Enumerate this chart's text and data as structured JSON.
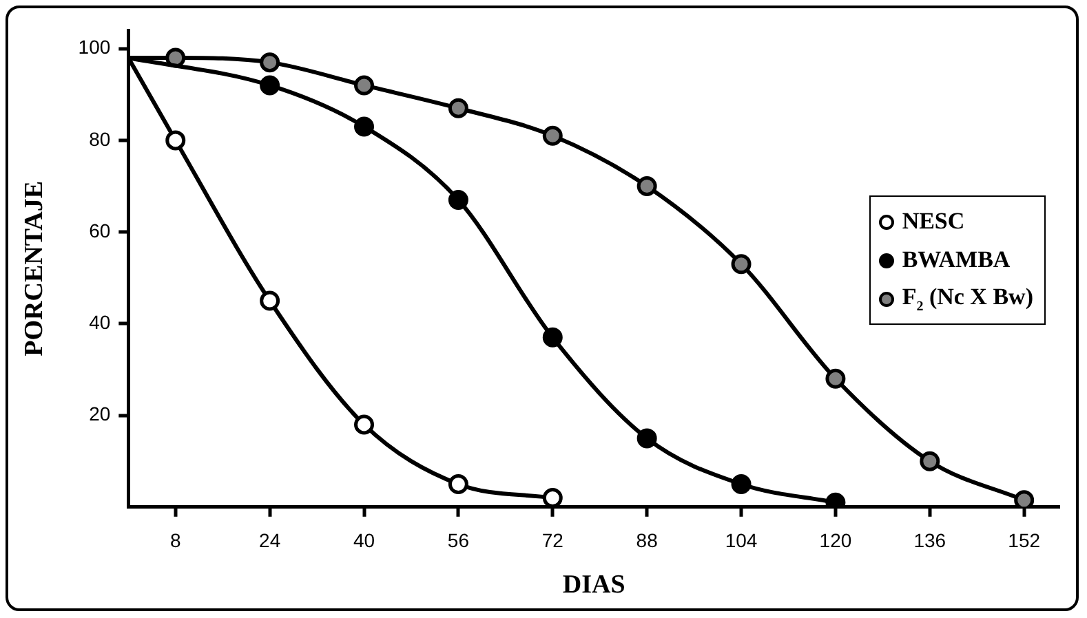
{
  "chart_data": {
    "type": "line",
    "xlabel": "DIAS",
    "ylabel": "PORCENTAJE",
    "xlim": [
      0,
      158
    ],
    "ylim": [
      0,
      104
    ],
    "xticks": [
      8,
      24,
      40,
      56,
      72,
      88,
      104,
      120,
      136,
      152
    ],
    "yticks": [
      20,
      40,
      60,
      80,
      100
    ],
    "grid": false,
    "legend": "right",
    "marker": "circle",
    "line_style": "solid",
    "series": [
      {
        "name": "NESC",
        "color": "#000000",
        "x": [
          0,
          8,
          24,
          40,
          56,
          72
        ],
        "values": [
          98,
          80,
          45,
          18,
          5,
          2
        ]
      },
      {
        "name": "BWAMBA",
        "color": "#000000",
        "x": [
          0,
          24,
          40,
          56,
          72,
          88,
          104,
          120
        ],
        "values": [
          98,
          92,
          83,
          67,
          37,
          15,
          5,
          1
        ]
      },
      {
        "name": "F$_{2}$ (Nc X Bw)",
        "color": "#000000",
        "x": [
          0,
          8,
          24,
          40,
          56,
          72,
          88,
          104,
          120,
          136,
          152
        ],
        "values": [
          98,
          98,
          97,
          92,
          87,
          81,
          70,
          53,
          28,
          10,
          1.5
        ]
      }
    ]
  }
}
